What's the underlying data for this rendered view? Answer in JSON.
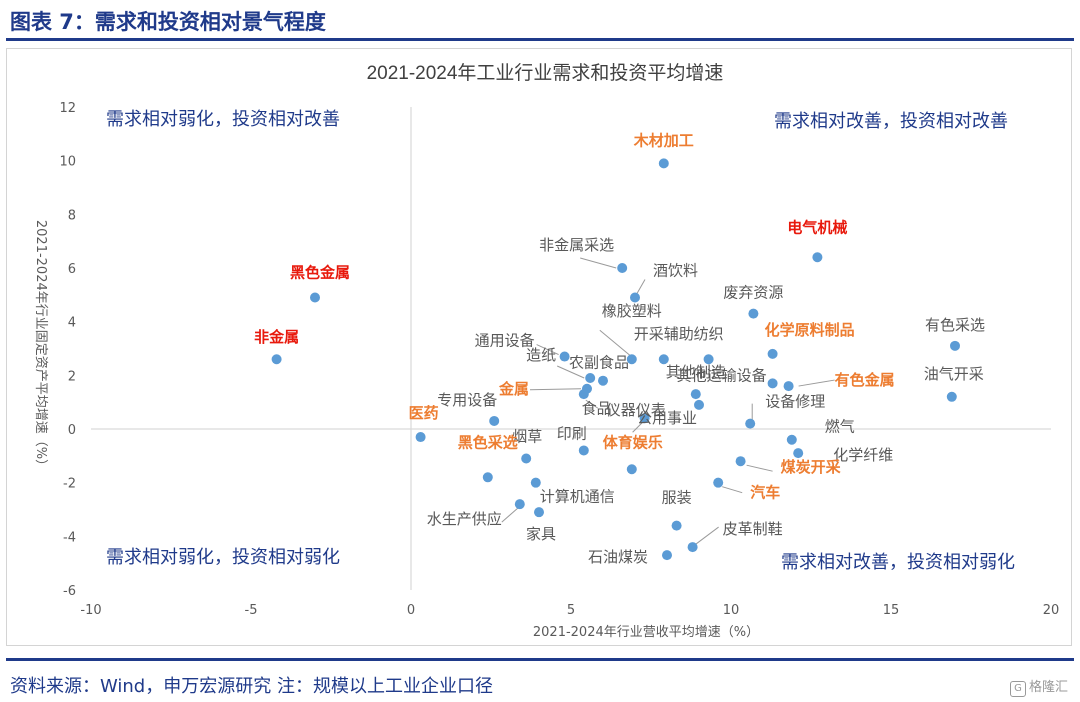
{
  "figure_title": "图表 7：需求和投资相对景气程度",
  "source_note": "资料来源：Wind，申万宏源研究 注：规模以上工业企业口径",
  "watermark": "格隆汇",
  "colors": {
    "accent": "#1f3a8a",
    "point": "#5b9bd5",
    "label": "#595959",
    "label_red": "#e8190c",
    "label_orange": "#ed7d31",
    "quadrant": "#1f3a8a"
  },
  "chart_data": {
    "type": "scatter",
    "title": "2021-2024年工业行业需求和投资平均增速",
    "xlabel": "2021-2024年行业营收平均增速（%）",
    "ylabel": "2021-2024年行业固定资产平均增速（%）",
    "xlim": [
      -10,
      20
    ],
    "ylim": [
      -6,
      12
    ],
    "x_ticks": [
      "-10",
      "-5",
      "0",
      "5",
      "10",
      "15",
      "20"
    ],
    "y_ticks": [
      "12",
      "10",
      "8",
      "6",
      "4",
      "2",
      "0",
      "-2",
      "-4",
      "-6"
    ],
    "grid": false,
    "quadrants": {
      "top_left": "需求相对弱化，投资相对改善",
      "top_right": "需求相对改善，投资相对改善",
      "bottom_left": "需求相对弱化，投资相对弱化",
      "bottom_right": "需求相对改善，投资相对弱化"
    },
    "points": [
      {
        "name": "木材加工",
        "x": 7.9,
        "y": 9.9,
        "style": "orange"
      },
      {
        "name": "电气机械",
        "x": 12.7,
        "y": 6.4,
        "style": "red"
      },
      {
        "name": "黑色金属",
        "x": -3.0,
        "y": 4.9,
        "style": "red"
      },
      {
        "name": "非金属",
        "x": -4.2,
        "y": 2.6,
        "style": "red"
      },
      {
        "name": "非金属采选",
        "x": 6.6,
        "y": 6.0,
        "style": "normal"
      },
      {
        "name": "酒饮料",
        "x": 7.0,
        "y": 4.9,
        "style": "normal"
      },
      {
        "name": "废弃资源",
        "x": 10.7,
        "y": 4.3,
        "style": "normal"
      },
      {
        "name": "有色采选",
        "x": 17.0,
        "y": 3.1,
        "style": "normal"
      },
      {
        "name": "化学原料制品",
        "x": 11.3,
        "y": 2.8,
        "style": "orange"
      },
      {
        "name": "通用设备",
        "x": 4.8,
        "y": 2.7,
        "style": "normal"
      },
      {
        "name": "橡胶塑料",
        "x": 6.9,
        "y": 2.6,
        "style": "normal"
      },
      {
        "name": "开采辅助",
        "x": 7.9,
        "y": 2.6,
        "style": "normal"
      },
      {
        "name": "纺织",
        "x": 9.3,
        "y": 2.6,
        "style": "normal"
      },
      {
        "name": "其他运输设备",
        "x": 11.3,
        "y": 1.7,
        "style": "normal"
      },
      {
        "name": "有色金属",
        "x": 11.8,
        "y": 1.6,
        "style": "orange"
      },
      {
        "name": "油气开采",
        "x": 16.9,
        "y": 1.2,
        "style": "normal"
      },
      {
        "name": "造纸",
        "x": 5.6,
        "y": 1.9,
        "style": "normal"
      },
      {
        "name": "农副食品",
        "x": 6.0,
        "y": 1.8,
        "style": "normal"
      },
      {
        "name": "金属",
        "x": 5.5,
        "y": 1.5,
        "style": "orange"
      },
      {
        "name": "仪器仪表",
        "x": 5.4,
        "y": 1.3,
        "style": "normal"
      },
      {
        "name": "其他制造",
        "x": 8.9,
        "y": 1.3,
        "style": "normal"
      },
      {
        "name": "专用设备",
        "x": 2.6,
        "y": 0.3,
        "style": "normal"
      },
      {
        "name": "食品",
        "x": 7.3,
        "y": 0.4,
        "style": "normal"
      },
      {
        "name": "公用事业",
        "x": 9.0,
        "y": 0.9,
        "style": "normal"
      },
      {
        "name": "设备修理",
        "x": 10.6,
        "y": 0.2,
        "style": "normal"
      },
      {
        "name": "燃气",
        "x": 11.9,
        "y": -0.4,
        "style": "normal"
      },
      {
        "name": "化学纤维",
        "x": 12.1,
        "y": -0.9,
        "style": "normal"
      },
      {
        "name": "医药",
        "x": 0.3,
        "y": -0.3,
        "style": "orange"
      },
      {
        "name": "印刷",
        "x": 5.4,
        "y": -0.8,
        "style": "normal"
      },
      {
        "name": "烟草",
        "x": 3.6,
        "y": -1.1,
        "style": "normal"
      },
      {
        "name": "体育娱乐",
        "x": 6.9,
        "y": -1.5,
        "style": "orange"
      },
      {
        "name": "黑色采选",
        "x": 2.4,
        "y": -1.8,
        "style": "orange"
      },
      {
        "name": "煤炭开采",
        "x": 10.3,
        "y": -1.2,
        "style": "orange"
      },
      {
        "name": "汽车",
        "x": 9.6,
        "y": -2.0,
        "style": "orange"
      },
      {
        "name": "计算机通信",
        "x": 3.9,
        "y": -2.0,
        "style": "normal"
      },
      {
        "name": "水生产供应",
        "x": 3.4,
        "y": -2.8,
        "style": "normal"
      },
      {
        "name": "家具",
        "x": 4.0,
        "y": -3.1,
        "style": "normal"
      },
      {
        "name": "服装",
        "x": 8.3,
        "y": -3.6,
        "style": "normal"
      },
      {
        "name": "皮革制鞋",
        "x": 8.8,
        "y": -4.4,
        "style": "normal"
      },
      {
        "name": "石油煤炭",
        "x": 8.0,
        "y": -4.7,
        "style": "normal"
      }
    ]
  }
}
